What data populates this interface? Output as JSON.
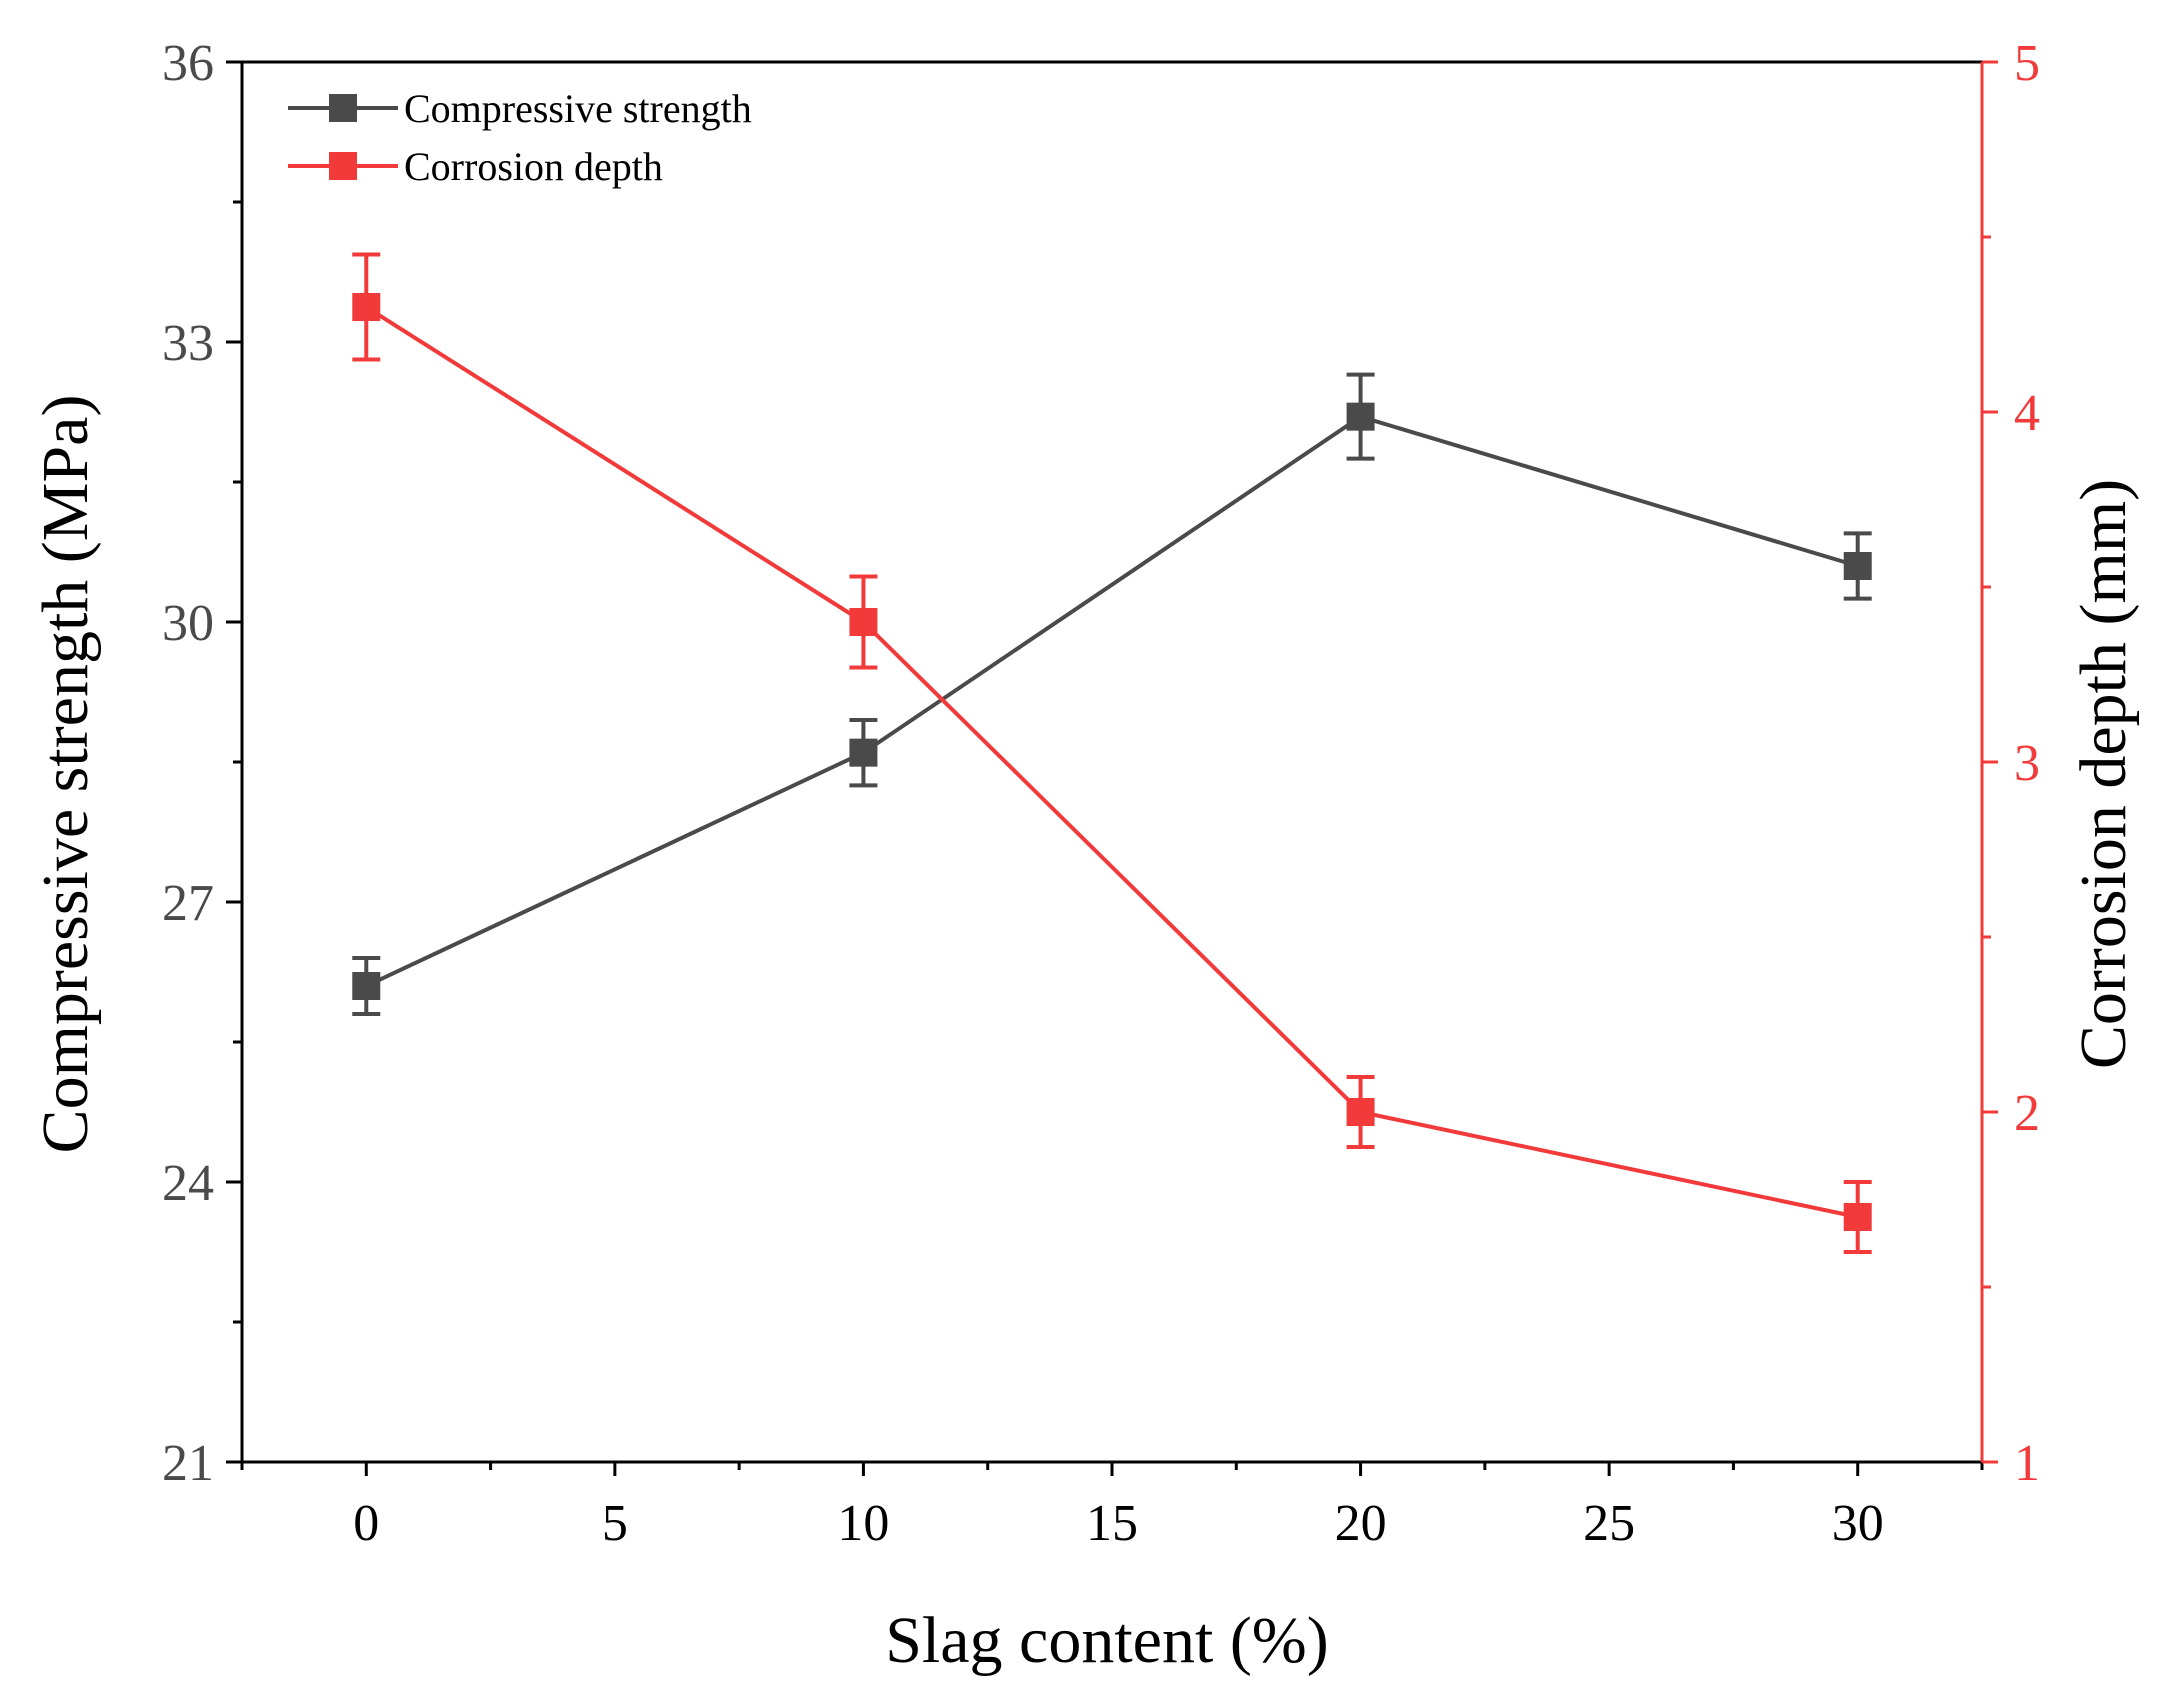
{
  "chart_data": {
    "type": "line",
    "title": "",
    "xlabel": "Slag content (%)",
    "ylabel": "Compressive strength (MPa)",
    "y2label": "Corrosion depth (mm)",
    "xlim": [
      -2.5,
      32.5
    ],
    "ylim": [
      21,
      36
    ],
    "y2lim": [
      1,
      5
    ],
    "x_ticks": [
      0,
      5,
      10,
      15,
      20,
      25,
      30
    ],
    "x_tick_labels": [
      "0",
      "5",
      "10",
      "15",
      "20",
      "25",
      "30"
    ],
    "y_ticks": [
      21,
      24,
      27,
      30,
      33,
      36
    ],
    "y_tick_labels": [
      "21",
      "24",
      "27",
      "30",
      "33",
      "36"
    ],
    "y2_ticks": [
      1,
      2,
      3,
      4,
      5
    ],
    "y2_tick_labels": [
      "1",
      "2",
      "3",
      "4",
      "5"
    ],
    "legend_position": "top-left",
    "grid": false,
    "series": [
      {
        "name": "Compressive strength",
        "axis": "left",
        "color": "#4a4a4a",
        "marker": "square",
        "x": [
          0,
          10,
          20,
          30
        ],
        "values": [
          26.1,
          28.6,
          32.2,
          30.6
        ],
        "error": [
          0.3,
          0.35,
          0.45,
          0.35
        ]
      },
      {
        "name": "Corrosion depth",
        "axis": "right",
        "color": "#f23a3a",
        "marker": "square",
        "x": [
          0,
          10,
          20,
          30
        ],
        "values": [
          4.3,
          3.4,
          2.0,
          1.7
        ],
        "error": [
          0.15,
          0.13,
          0.1,
          0.1
        ]
      }
    ],
    "colors": {
      "left_axis": "#4a4a4a",
      "right_axis": "#f23a3a",
      "title_text": "#000000"
    }
  }
}
